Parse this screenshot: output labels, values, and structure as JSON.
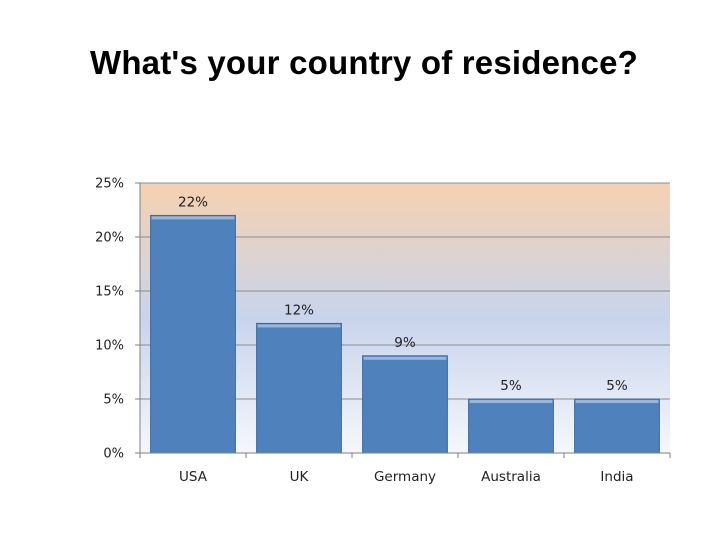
{
  "chart_data": {
    "type": "bar",
    "title": "What's your country of residence?",
    "categories": [
      "USA",
      "UK",
      "Germany",
      "Australia",
      "India"
    ],
    "values": [
      22,
      12,
      9,
      5,
      5
    ],
    "data_labels": [
      "22%",
      "12%",
      "9%",
      "5%",
      "5%"
    ],
    "yticks": [
      "0%",
      "5%",
      "10%",
      "15%",
      "20%",
      "25%"
    ],
    "ylim": [
      0,
      25
    ],
    "grid": true,
    "colors": {
      "bar": "#4f81bd",
      "bar_edge": "#3a6aa3",
      "plot_bg_top": "#f6d1b0",
      "plot_bg_bottom": "#f5f7fb",
      "grid": "#8c8c8c"
    }
  }
}
